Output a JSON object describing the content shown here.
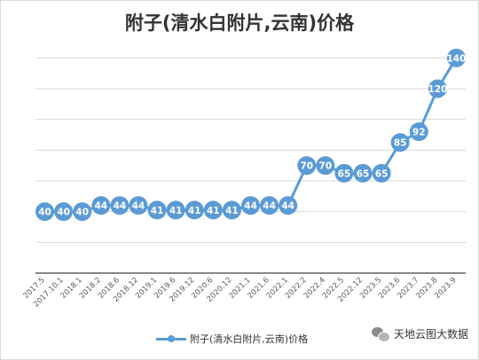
{
  "chart_data": {
    "type": "line",
    "title": "附子(清水白附片,云南)价格",
    "xlabel": "",
    "ylabel": "",
    "ylim": [
      0,
      150
    ],
    "grid": true,
    "legend_position": "bottom",
    "categories": [
      "2017.5",
      "2017.10.1",
      "2018.1",
      "2018.2",
      "2018.6",
      "2018.12",
      "2019.1",
      "2019.6",
      "2019.12",
      "2020.6",
      "2020.12",
      "2021.1",
      "2021.6",
      "2022.1",
      "2022.2",
      "2022.4",
      "2022.5",
      "2022.12",
      "2023.5",
      "2023.6",
      "2023.7",
      "2023.8",
      "2023.9"
    ],
    "series": [
      {
        "name": "附子(清水白附片,云南)价格",
        "color": "#5b9bd5",
        "values": [
          40,
          40,
          40,
          44,
          44,
          44,
          41,
          41,
          41,
          41,
          41,
          44,
          44,
          44,
          70,
          70,
          65,
          65,
          65,
          85,
          92,
          120,
          140
        ]
      }
    ]
  },
  "watermark": {
    "icon": "wechat-icon",
    "text": "天地云图大数据"
  }
}
